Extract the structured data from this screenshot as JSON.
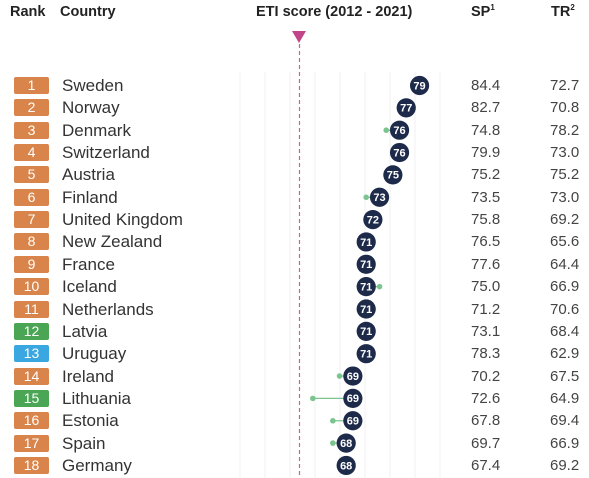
{
  "headers": {
    "rank": "Rank",
    "country": "Country",
    "eti": "ETI score (2012 - 2021)",
    "sp": "SP",
    "sp_sup": "1",
    "tr": "TR",
    "tr_sup": "2"
  },
  "colors": {
    "badge_default": "#d9844a",
    "badge_green": "#4aa655",
    "badge_blue": "#3aa7e0",
    "dot": "#1d2a4a",
    "trail": "#7cc48f",
    "marker": "#c2458a",
    "dashed_line": "#d4608f"
  },
  "chart_data": {
    "type": "table",
    "x_range": [
      50,
      85
    ],
    "marker_value": 61,
    "rows": [
      {
        "rank": "1",
        "country": "Sweden",
        "score": 79,
        "score_2012": 78,
        "sp": "84.4",
        "tr": "72.7",
        "badge": "default"
      },
      {
        "rank": "2",
        "country": "Norway",
        "score": 77,
        "score_2012": 76,
        "sp": "82.7",
        "tr": "70.8",
        "badge": "default"
      },
      {
        "rank": "3",
        "country": "Denmark",
        "score": 76,
        "score_2012": 74,
        "sp": "74.8",
        "tr": "78.2",
        "badge": "default"
      },
      {
        "rank": "4",
        "country": "Switzerland",
        "score": 76,
        "score_2012": 75,
        "sp": "79.9",
        "tr": "73.0",
        "badge": "default"
      },
      {
        "rank": "5",
        "country": "Austria",
        "score": 75,
        "score_2012": 74,
        "sp": "75.2",
        "tr": "75.2",
        "badge": "default"
      },
      {
        "rank": "6",
        "country": "Finland",
        "score": 73,
        "score_2012": 71,
        "sp": "73.5",
        "tr": "73.0",
        "badge": "default"
      },
      {
        "rank": "7",
        "country": "United Kingdom",
        "score": 72,
        "score_2012": 71,
        "sp": "75.8",
        "tr": "69.2",
        "badge": "default"
      },
      {
        "rank": "8",
        "country": "New Zealand",
        "score": 71,
        "score_2012": 72,
        "sp": "76.5",
        "tr": "65.6",
        "badge": "default"
      },
      {
        "rank": "9",
        "country": "France",
        "score": 71,
        "score_2012": 71,
        "sp": "77.6",
        "tr": "64.4",
        "badge": "default"
      },
      {
        "rank": "10",
        "country": "Iceland",
        "score": 71,
        "score_2012": 73,
        "sp": "75.0",
        "tr": "66.9",
        "badge": "default"
      },
      {
        "rank": "11",
        "country": "Netherlands",
        "score": 71,
        "score_2012": 70,
        "sp": "71.2",
        "tr": "70.6",
        "badge": "default"
      },
      {
        "rank": "12",
        "country": "Latvia",
        "score": 71,
        "score_2012": 70,
        "sp": "73.1",
        "tr": "68.4",
        "badge": "green"
      },
      {
        "rank": "13",
        "country": "Uruguay",
        "score": 71,
        "score_2012": 70,
        "sp": "78.3",
        "tr": "62.9",
        "badge": "blue"
      },
      {
        "rank": "14",
        "country": "Ireland",
        "score": 69,
        "score_2012": 67,
        "sp": "70.2",
        "tr": "67.5",
        "badge": "default"
      },
      {
        "rank": "15",
        "country": "Lithuania",
        "score": 69,
        "score_2012": 63,
        "sp": "72.6",
        "tr": "64.9",
        "badge": "green"
      },
      {
        "rank": "16",
        "country": "Estonia",
        "score": 69,
        "score_2012": 66,
        "sp": "67.8",
        "tr": "69.4",
        "badge": "default"
      },
      {
        "rank": "17",
        "country": "Spain",
        "score": 68,
        "score_2012": 66,
        "sp": "69.7",
        "tr": "66.9",
        "badge": "default"
      },
      {
        "rank": "18",
        "country": "Germany",
        "score": 68,
        "score_2012": 67,
        "sp": "67.4",
        "tr": "69.2",
        "badge": "default"
      }
    ]
  }
}
